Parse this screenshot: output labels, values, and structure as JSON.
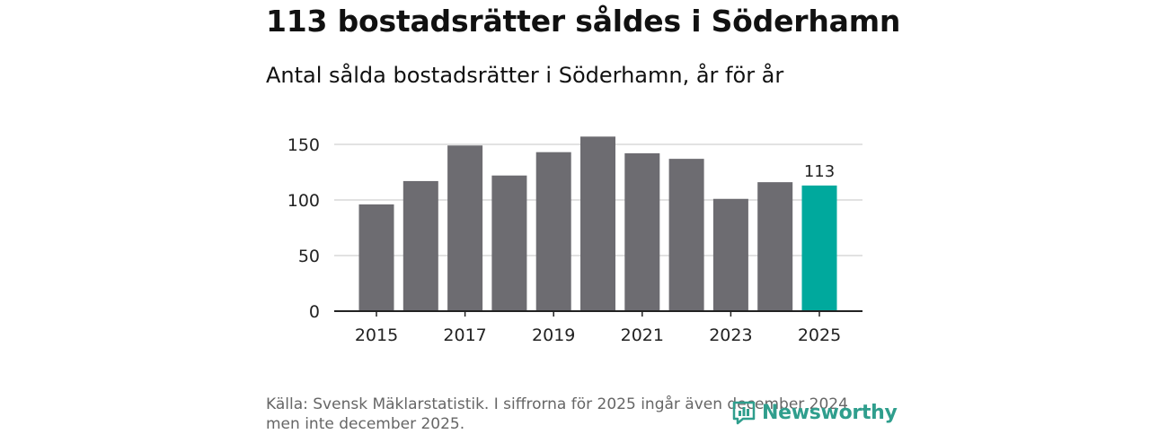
{
  "header": {
    "title": "113 bostadsrätter såldes i Söderhamn",
    "subtitle": "Antal sålda bostadsrätter i Söderhamn, år för år"
  },
  "footer": {
    "source_line1": "Källa: Svensk Mäklarstatistik. I siffrorna för 2025 ingår även december 2024",
    "source_line2": "men inte december 2025."
  },
  "logo": {
    "text": "Newsworthy",
    "icon": "newsworthy-logo-icon"
  },
  "colors": {
    "bar": "#6d6c71",
    "highlight": "#00a99d",
    "grid": "#d9d9d9",
    "axis": "#222222",
    "brand": "#2f9e8d"
  },
  "chart_data": {
    "type": "bar",
    "title": "Antal sålda bostadsrätter i Söderhamn, år för år",
    "categories": [
      "2015",
      "2016",
      "2017",
      "2018",
      "2019",
      "2020",
      "2021",
      "2022",
      "2023",
      "2024",
      "2025"
    ],
    "values": [
      96,
      117,
      149,
      122,
      143,
      157,
      142,
      137,
      101,
      116,
      113
    ],
    "highlight_index": 10,
    "x_tick_labels": [
      "2015",
      "2017",
      "2019",
      "2021",
      "2023",
      "2025"
    ],
    "y_ticks": [
      0,
      50,
      100,
      150
    ],
    "y_tick_labels": [
      "0",
      "50",
      "100",
      "150"
    ],
    "ylim": [
      0,
      150
    ],
    "data_labels": [
      {
        "index": 10,
        "text": "113"
      }
    ],
    "xlabel": "",
    "ylabel": "",
    "grid": true
  }
}
